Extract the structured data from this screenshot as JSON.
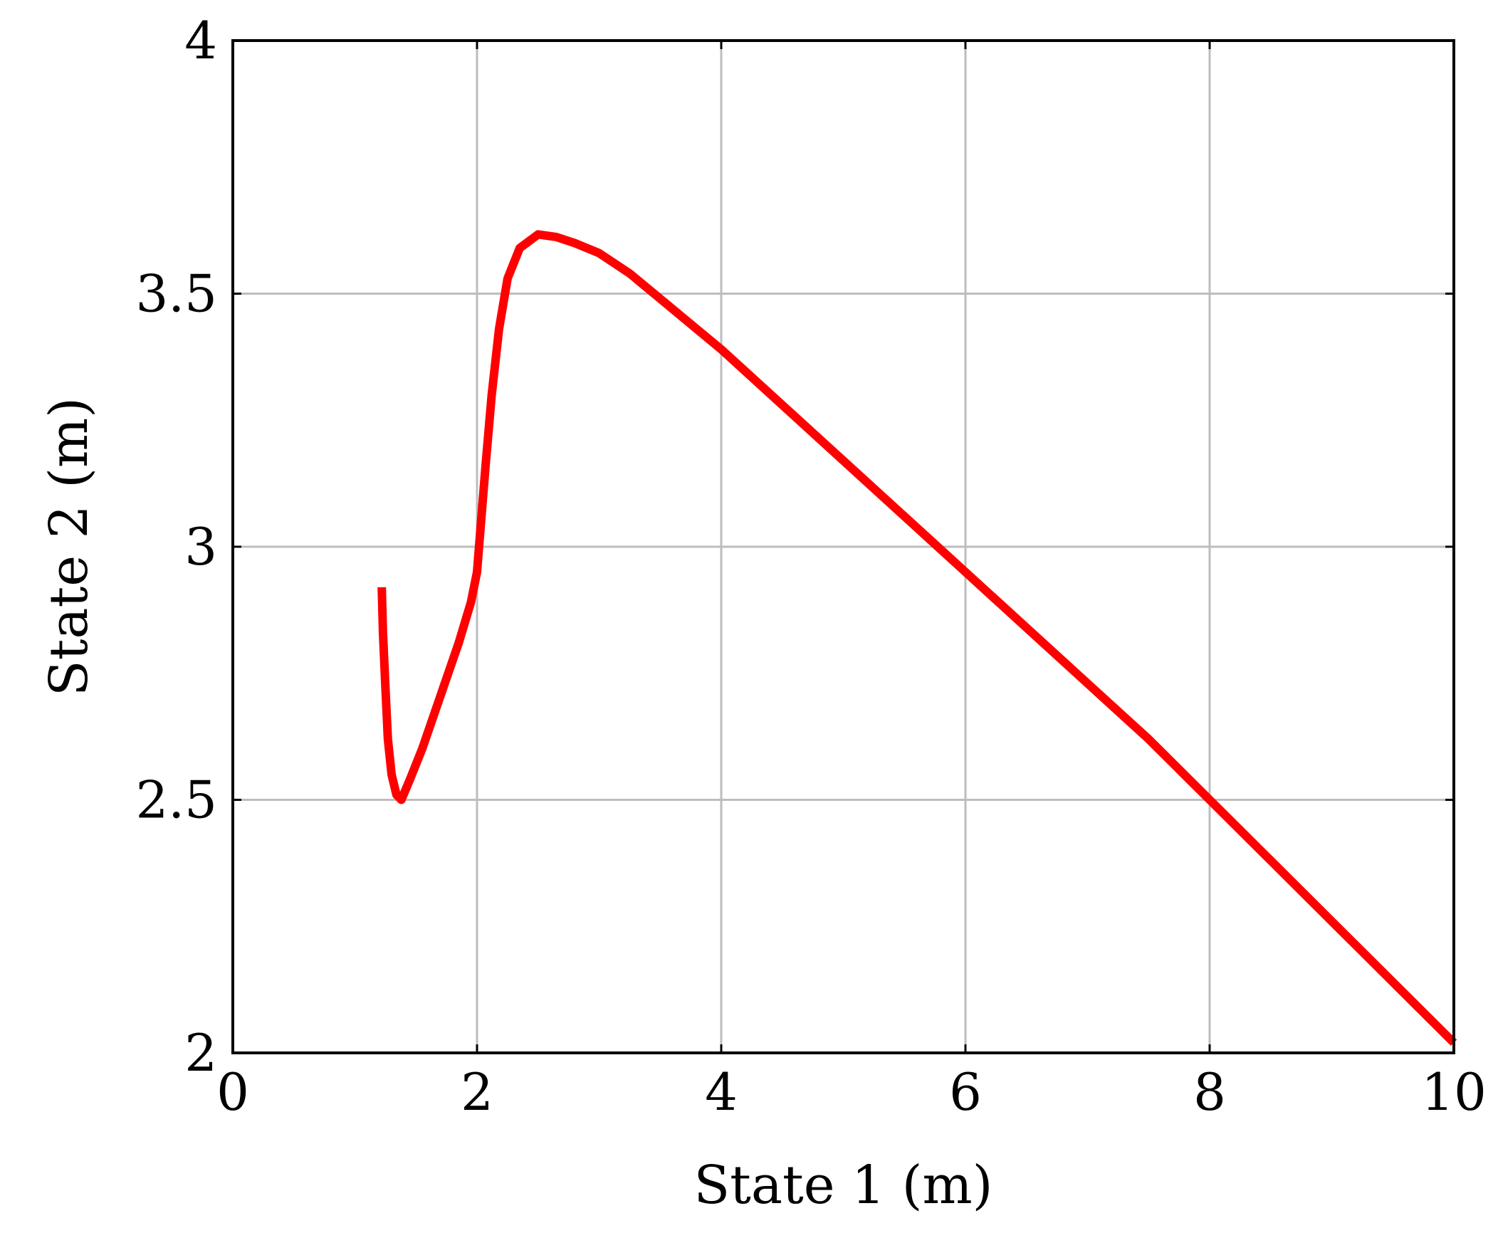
{
  "chart_data": {
    "type": "line",
    "title": "",
    "xlabel": "State 1 (m)",
    "ylabel": "State 2 (m)",
    "xlim": [
      0,
      10
    ],
    "ylim": [
      2,
      4
    ],
    "xticks": [
      0,
      2,
      4,
      6,
      8,
      10
    ],
    "xtick_labels": [
      "0",
      "2",
      "4",
      "6",
      "8",
      "10"
    ],
    "yticks": [
      2,
      2.5,
      3,
      3.5,
      4
    ],
    "ytick_labels": [
      "2",
      "2.5",
      "3",
      "3.5",
      "4"
    ],
    "grid": true,
    "legend": "none",
    "series": [
      {
        "color": "#ff0000",
        "x": [
          1.22,
          1.23,
          1.25,
          1.27,
          1.3,
          1.34,
          1.38,
          1.45,
          1.55,
          1.65,
          1.75,
          1.85,
          1.95,
          2.0,
          2.03,
          2.07,
          2.12,
          2.18,
          2.25,
          2.35,
          2.5,
          2.65,
          2.8,
          3.0,
          3.25,
          3.5,
          4.0,
          4.5,
          5.0,
          5.5,
          6.0,
          6.5,
          7.0,
          7.5,
          8.0,
          8.5,
          9.0,
          9.5,
          10.0
        ],
        "y": [
          2.92,
          2.83,
          2.72,
          2.62,
          2.55,
          2.51,
          2.5,
          2.54,
          2.6,
          2.67,
          2.74,
          2.81,
          2.89,
          2.95,
          3.04,
          3.16,
          3.3,
          3.43,
          3.53,
          3.59,
          3.617,
          3.612,
          3.6,
          3.58,
          3.54,
          3.49,
          3.39,
          3.28,
          3.17,
          3.06,
          2.95,
          2.84,
          2.73,
          2.62,
          2.5,
          2.38,
          2.26,
          2.14,
          2.02
        ]
      }
    ]
  }
}
